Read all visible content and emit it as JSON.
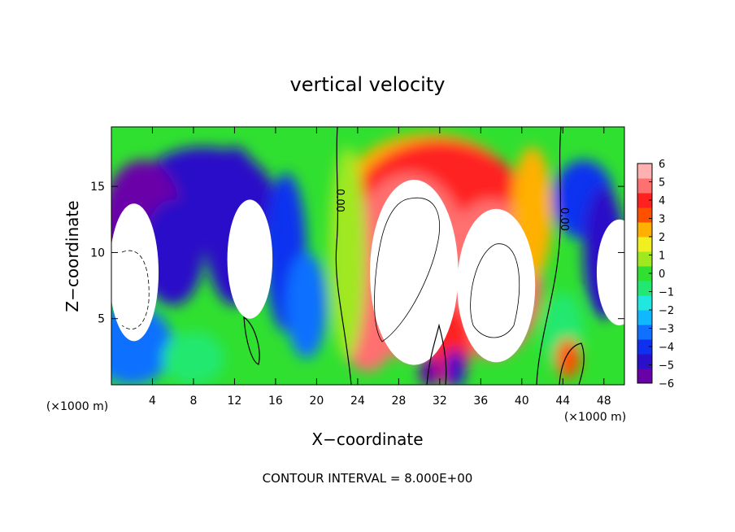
{
  "chart_data": {
    "type": "heatmap",
    "title": "vertical velocity",
    "xlabel": "X−coordinate",
    "ylabel": "Z−coordinate",
    "x_unit_left": "(×1000 m)",
    "x_unit_right": "(×1000 m)",
    "footer": "CONTOUR INTERVAL = 8.000E+00",
    "xlim": [
      0,
      50
    ],
    "ylim": [
      0,
      19.5
    ],
    "x_ticks": [
      4,
      8,
      12,
      16,
      20,
      24,
      28,
      32,
      36,
      40,
      44,
      48
    ],
    "y_ticks": [
      5,
      10,
      15
    ],
    "contour_label": "0.00",
    "colorbar": {
      "range": [
        -6,
        6
      ],
      "tick_labels": [
        "6",
        "5",
        "4",
        "3",
        "2",
        "1",
        "0",
        "−1",
        "−2",
        "−3",
        "−4",
        "−5",
        "−6"
      ],
      "tick_values": [
        6,
        5,
        4,
        3,
        2,
        1,
        0,
        -1,
        -2,
        -3,
        -4,
        -5,
        -6
      ],
      "colors": [
        "#6a00a8",
        "#2a10c8",
        "#1030f0",
        "#1070ff",
        "#10b8ff",
        "#20e8e0",
        "#20e870",
        "#30e030",
        "#a0e820",
        "#f0f020",
        "#ffb000",
        "#ff5000",
        "#ff2020",
        "#ff7070",
        "#ffb0b0"
      ]
    },
    "regions": [
      {
        "value": -6.5,
        "cx": 2.2,
        "cy": 8.5,
        "rx": 2.4,
        "ry": 5.2
      },
      {
        "value": -6.5,
        "cx": 13.5,
        "cy": 9.5,
        "rx": 2.2,
        "ry": 4.5
      },
      {
        "value": 6.5,
        "cx": 29.5,
        "cy": 8.5,
        "rx": 4.3,
        "ry": 7.0
      },
      {
        "value": 6.5,
        "cx": 37.5,
        "cy": 7.5,
        "rx": 3.8,
        "ry": 5.8
      },
      {
        "value": -6.5,
        "cx": 49.5,
        "cy": 8.5,
        "rx": 2.2,
        "ry": 4.0
      }
    ]
  }
}
